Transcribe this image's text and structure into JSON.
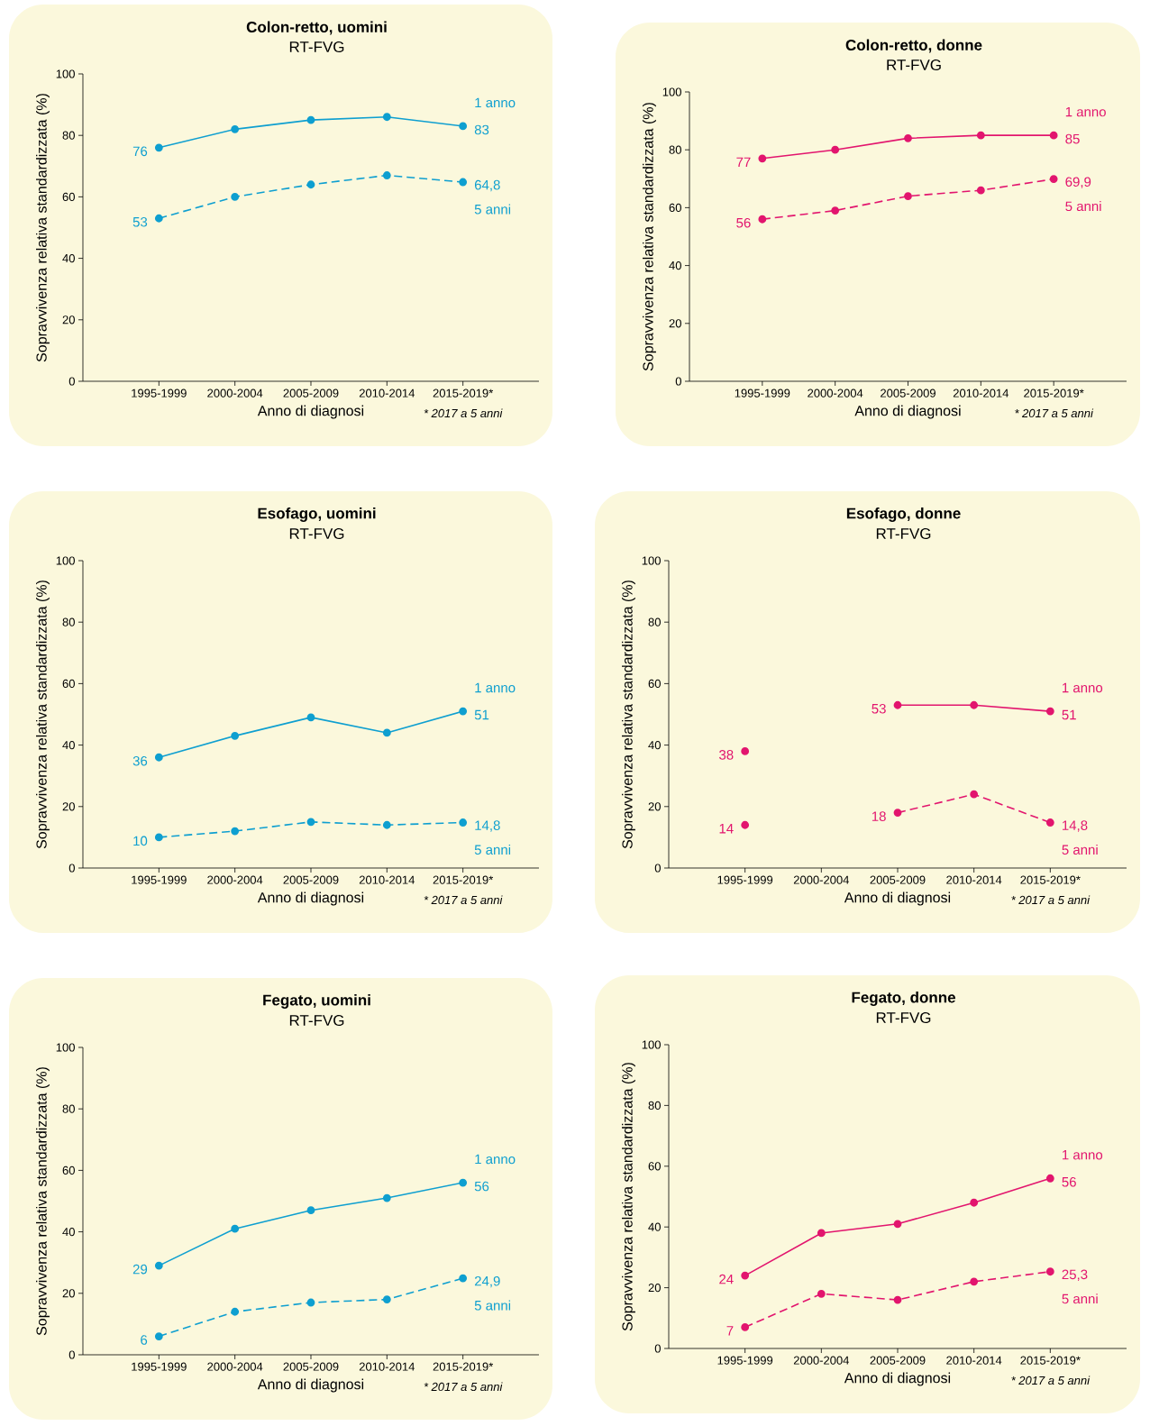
{
  "chart_data": [
    {
      "type": "line",
      "title": "Colon-retto, uomini",
      "subtitle": "RT-FVG",
      "xlabel": "Anno di diagnosi",
      "ylabel": "Sopravvivenza relativa standardizzata (%)",
      "categories": [
        "1995-1999",
        "2000-2004",
        "2005-2009",
        "2010-2014",
        "2015-2019*"
      ],
      "ylim": [
        0,
        100
      ],
      "yticks": [
        0,
        20,
        40,
        60,
        80,
        100
      ],
      "marker": "circle",
      "annotations": [
        "* 2017 a 5 anni"
      ],
      "series": [
        {
          "name": "1 anno",
          "color": "#0e9fd0",
          "line_style": "solid",
          "values": [
            76,
            82,
            85,
            86,
            83
          ],
          "value_labels": [
            "76",
            null,
            null,
            null,
            "83"
          ]
        },
        {
          "name": "5 anni",
          "color": "#0e9fd0",
          "line_style": "dashed",
          "values": [
            53,
            60,
            64,
            67,
            64.8
          ],
          "value_labels": [
            "53",
            null,
            null,
            null,
            "64,8"
          ]
        }
      ]
    },
    {
      "type": "line",
      "title": "Colon-retto, donne",
      "subtitle": "RT-FVG",
      "xlabel": "Anno di diagnosi",
      "ylabel": "Sopravvivenza relativa standardizzata (%)",
      "categories": [
        "1995-1999",
        "2000-2004",
        "2005-2009",
        "2010-2014",
        "2015-2019*"
      ],
      "ylim": [
        0,
        100
      ],
      "yticks": [
        0,
        20,
        40,
        60,
        80,
        100
      ],
      "marker": "circle",
      "annotations": [
        "* 2017 a 5 anni"
      ],
      "series": [
        {
          "name": "1 anno",
          "color": "#e2156e",
          "line_style": "solid",
          "values": [
            77,
            80,
            84,
            85,
            85
          ],
          "value_labels": [
            "77",
            null,
            null,
            null,
            "85"
          ]
        },
        {
          "name": "5 anni",
          "color": "#e2156e",
          "line_style": "dashed",
          "values": [
            56,
            59,
            64,
            66,
            69.9
          ],
          "value_labels": [
            "56",
            null,
            null,
            null,
            "69,9"
          ]
        }
      ]
    },
    {
      "type": "line",
      "title": "Esofago, uomini",
      "subtitle": "RT-FVG",
      "xlabel": "Anno di diagnosi",
      "ylabel": "Sopravvivenza relativa standardizzata (%)",
      "categories": [
        "1995-1999",
        "2000-2004",
        "2005-2009",
        "2010-2014",
        "2015-2019*"
      ],
      "ylim": [
        0,
        100
      ],
      "yticks": [
        0,
        20,
        40,
        60,
        80,
        100
      ],
      "marker": "circle",
      "annotations": [
        "* 2017 a 5 anni"
      ],
      "series": [
        {
          "name": "1 anno",
          "color": "#0e9fd0",
          "line_style": "solid",
          "values": [
            36,
            43,
            49,
            44,
            51
          ],
          "value_labels": [
            "36",
            null,
            null,
            null,
            "51"
          ]
        },
        {
          "name": "5 anni",
          "color": "#0e9fd0",
          "line_style": "dashed",
          "values": [
            10,
            12,
            15,
            14,
            14.8
          ],
          "value_labels": [
            "10",
            null,
            null,
            null,
            "14,8"
          ]
        }
      ]
    },
    {
      "type": "line",
      "title": "Esofago, donne",
      "subtitle": "RT-FVG",
      "xlabel": "Anno di diagnosi",
      "ylabel": "Sopravvivenza relativa standardizzata (%)",
      "categories": [
        "1995-1999",
        "2000-2004",
        "2005-2009",
        "2010-2014",
        "2015-2019*"
      ],
      "ylim": [
        0,
        100
      ],
      "yticks": [
        0,
        20,
        40,
        60,
        80,
        100
      ],
      "marker": "circle",
      "annotations": [
        "* 2017 a 5 anni"
      ],
      "series": [
        {
          "name": "1 anno",
          "color": "#e2156e",
          "line_style": "solid",
          "values": [
            38,
            null,
            53,
            53,
            51
          ],
          "value_labels": [
            "38",
            null,
            "53",
            null,
            "51"
          ]
        },
        {
          "name": "5 anni",
          "color": "#e2156e",
          "line_style": "dashed",
          "values": [
            14,
            null,
            18,
            24,
            14.8
          ],
          "value_labels": [
            "14",
            null,
            "18",
            null,
            "14,8"
          ]
        }
      ]
    },
    {
      "type": "line",
      "title": "Fegato, uomini",
      "subtitle": "RT-FVG",
      "xlabel": "Anno di diagnosi",
      "ylabel": "Sopravvivenza relativa standardizzata (%)",
      "categories": [
        "1995-1999",
        "2000-2004",
        "2005-2009",
        "2010-2014",
        "2015-2019*"
      ],
      "ylim": [
        0,
        100
      ],
      "yticks": [
        0,
        20,
        40,
        60,
        80,
        100
      ],
      "marker": "circle",
      "annotations": [
        "* 2017 a 5 anni"
      ],
      "series": [
        {
          "name": "1 anno",
          "color": "#0e9fd0",
          "line_style": "solid",
          "values": [
            29,
            41,
            47,
            51,
            56
          ],
          "value_labels": [
            "29",
            null,
            null,
            null,
            "56"
          ]
        },
        {
          "name": "5 anni",
          "color": "#0e9fd0",
          "line_style": "dashed",
          "values": [
            6,
            14,
            17,
            18,
            24.9
          ],
          "value_labels": [
            "6",
            null,
            null,
            null,
            "24,9"
          ]
        }
      ]
    },
    {
      "type": "line",
      "title": "Fegato, donne",
      "subtitle": "RT-FVG",
      "xlabel": "Anno di diagnosi",
      "ylabel": "Sopravvivenza relativa standardizzata (%)",
      "categories": [
        "1995-1999",
        "2000-2004",
        "2005-2009",
        "2010-2014",
        "2015-2019*"
      ],
      "ylim": [
        0,
        100
      ],
      "yticks": [
        0,
        20,
        40,
        60,
        80,
        100
      ],
      "marker": "circle",
      "annotations": [
        "* 2017 a 5 anni"
      ],
      "series": [
        {
          "name": "1 anno",
          "color": "#e2156e",
          "line_style": "solid",
          "values": [
            24,
            38,
            41,
            48,
            56
          ],
          "value_labels": [
            "24",
            null,
            null,
            null,
            "56"
          ]
        },
        {
          "name": "5 anni",
          "color": "#e2156e",
          "line_style": "dashed",
          "values": [
            7,
            18,
            16,
            22,
            25.3
          ],
          "value_labels": [
            "7",
            null,
            null,
            null,
            "25,3"
          ]
        }
      ]
    }
  ]
}
